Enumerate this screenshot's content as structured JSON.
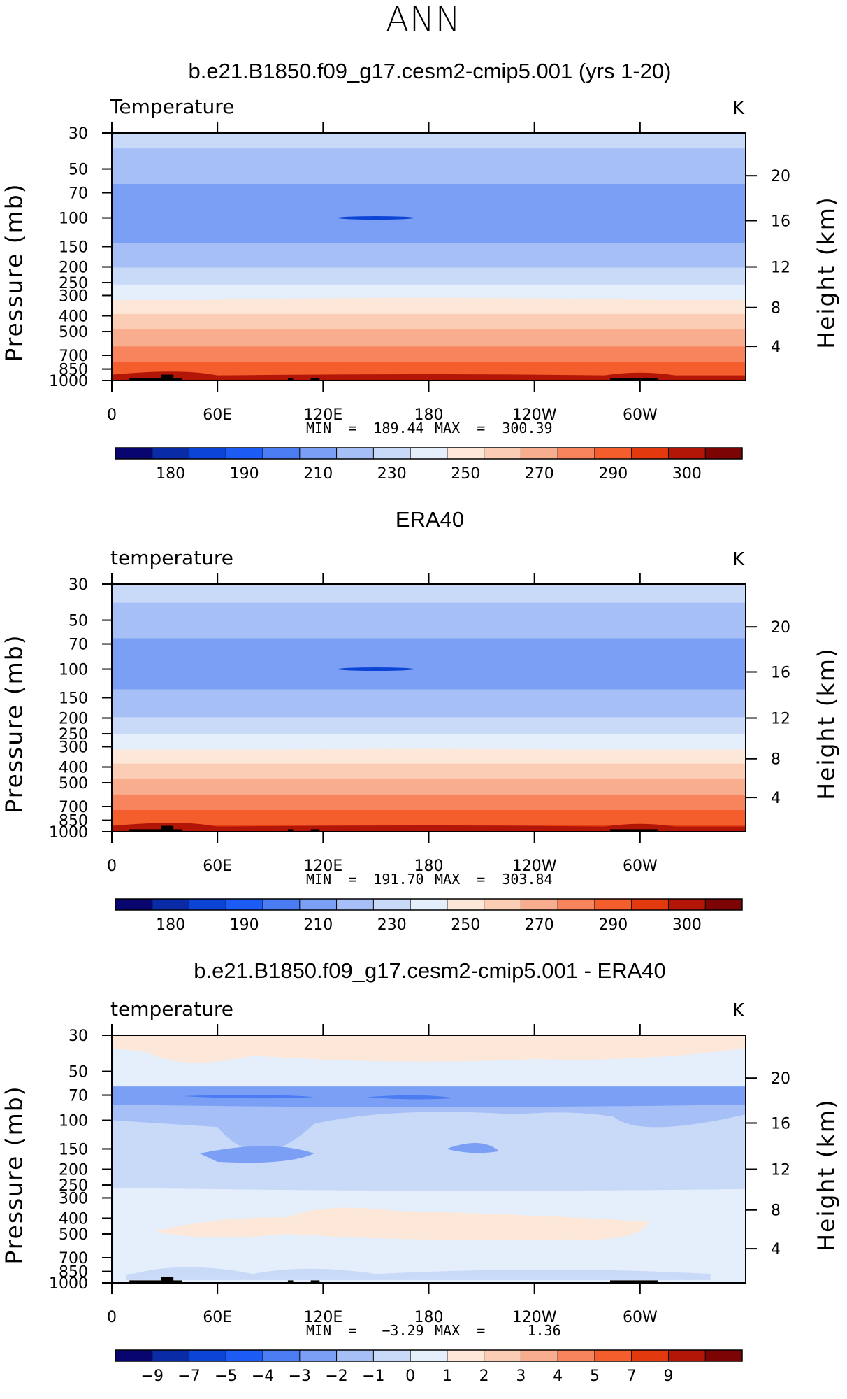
{
  "figure": {
    "season": "ANN"
  },
  "panels": [
    {
      "title": "b.e21.B1850.f09_g17.cesm2-cmip5.001 (yrs 1-20)",
      "variable": "Temperature",
      "units": "K",
      "min_label": "MIN  =  189.44",
      "max_label": "MAX  =  300.39",
      "left_axis_title": "Pressure  (mb)",
      "right_axis_title": "Height  (km)",
      "colorbar_labels": [
        "180",
        "190",
        "210",
        "230",
        "250",
        "270",
        "290",
        "300"
      ]
    },
    {
      "title": "ERA40",
      "variable": "temperature",
      "units": "K",
      "min_label": "MIN  =  191.70",
      "max_label": "MAX  =  303.84",
      "left_axis_title": "Pressure  (mb)",
      "right_axis_title": "Height  (km)",
      "colorbar_labels": [
        "180",
        "190",
        "210",
        "230",
        "250",
        "270",
        "290",
        "300"
      ]
    },
    {
      "title": "b.e21.B1850.f09_g17.cesm2-cmip5.001 - ERA40",
      "variable": "temperature",
      "units": "K",
      "min_label": "MIN  =   −3.29",
      "max_label": "MAX  =     1.36",
      "left_axis_title": "Pressure  (mb)",
      "right_axis_title": "Height  (km)",
      "colorbar_labels": [
        "−9",
        "−7",
        "−5",
        "−4",
        "−3",
        "−2",
        "−1",
        "0",
        "1",
        "2",
        "3",
        "4",
        "5",
        "7",
        "9"
      ]
    }
  ],
  "chart_data": [
    {
      "type": "heatmap",
      "title": "b.e21.B1850.f09_g17.cesm2-cmip5.001 (yrs 1-20)",
      "xlabel": "",
      "ylabel": "Pressure (mb)",
      "y2label": "Height (km)",
      "x_ticks": [
        "0",
        "60E",
        "120E",
        "180",
        "120W",
        "60W"
      ],
      "y_ticks": [
        "30",
        "50",
        "70",
        "100",
        "150",
        "200",
        "250",
        "300",
        "400",
        "500",
        "700",
        "850",
        "1000"
      ],
      "y2_ticks": [
        "20",
        "16",
        "12",
        "8",
        "4"
      ],
      "ylim": [
        1000,
        30
      ],
      "y_scale": "log",
      "value_range": {
        "min": 189.44,
        "max": 300.39
      },
      "levels": [
        180,
        185,
        190,
        200,
        210,
        220,
        230,
        240,
        250,
        260,
        270,
        280,
        290,
        295,
        300
      ],
      "colors": [
        "#08066e",
        "#0a2ba6",
        "#0c45d6",
        "#1d5cf4",
        "#4b7cf2",
        "#7b9ff4",
        "#a6c0f7",
        "#c9daf9",
        "#e5effb",
        "#fde7d8",
        "#fbcdb4",
        "#f8ad8f",
        "#f7845d",
        "#f35e2c",
        "#e2390f",
        "#b31607",
        "#7d0404"
      ],
      "zonal_profile_K": {
        "30": 224,
        "50": 214,
        "70": 207,
        "100": 205,
        "150": 211,
        "200": 220,
        "250": 229,
        "300": 237,
        "400": 252,
        "500": 262,
        "700": 276,
        "850": 285,
        "1000": 293
      }
    },
    {
      "type": "heatmap",
      "title": "ERA40",
      "xlabel": "",
      "ylabel": "Pressure (mb)",
      "y2label": "Height (km)",
      "x_ticks": [
        "0",
        "60E",
        "120E",
        "180",
        "120W",
        "60W"
      ],
      "y_ticks": [
        "30",
        "50",
        "70",
        "100",
        "150",
        "200",
        "250",
        "300",
        "400",
        "500",
        "700",
        "850",
        "1000"
      ],
      "y2_ticks": [
        "20",
        "16",
        "12",
        "8",
        "4"
      ],
      "ylim": [
        1000,
        30
      ],
      "y_scale": "log",
      "value_range": {
        "min": 191.7,
        "max": 303.84
      },
      "levels": [
        180,
        185,
        190,
        200,
        210,
        220,
        230,
        240,
        250,
        260,
        270,
        280,
        290,
        295,
        300
      ],
      "colors": [
        "#08066e",
        "#0a2ba6",
        "#0c45d6",
        "#1d5cf4",
        "#4b7cf2",
        "#7b9ff4",
        "#a6c0f7",
        "#c9daf9",
        "#e5effb",
        "#fde7d8",
        "#fbcdb4",
        "#f8ad8f",
        "#f7845d",
        "#f35e2c",
        "#e2390f",
        "#b31607",
        "#7d0404"
      ],
      "zonal_profile_K": {
        "30": 225,
        "50": 215,
        "70": 208,
        "100": 206,
        "150": 212,
        "200": 221,
        "250": 230,
        "300": 238,
        "400": 253,
        "500": 263,
        "700": 278,
        "850": 287,
        "1000": 295
      }
    },
    {
      "type": "heatmap",
      "title": "b.e21.B1850.f09_g17.cesm2-cmip5.001 - ERA40",
      "xlabel": "",
      "ylabel": "Pressure (mb)",
      "y2label": "Height (km)",
      "x_ticks": [
        "0",
        "60E",
        "120E",
        "180",
        "120W",
        "60W"
      ],
      "y_ticks": [
        "30",
        "50",
        "70",
        "100",
        "150",
        "200",
        "250",
        "300",
        "400",
        "500",
        "700",
        "850",
        "1000"
      ],
      "y2_ticks": [
        "20",
        "16",
        "12",
        "8",
        "4"
      ],
      "ylim": [
        1000,
        30
      ],
      "y_scale": "log",
      "value_range": {
        "min": -3.29,
        "max": 1.36
      },
      "levels": [
        -9,
        -7,
        -5,
        -4,
        -3,
        -2,
        -1,
        0,
        1,
        2,
        3,
        4,
        5,
        7,
        9
      ],
      "colors": [
        "#08066e",
        "#0a2ba6",
        "#0c45d6",
        "#1d5cf4",
        "#4b7cf2",
        "#7b9ff4",
        "#a6c0f7",
        "#c9daf9",
        "#e5effb",
        "#fde7d8",
        "#fbcdb4",
        "#f8ad8f",
        "#f7845d",
        "#f35e2c",
        "#e2390f",
        "#b31607",
        "#7d0404"
      ]
    }
  ]
}
